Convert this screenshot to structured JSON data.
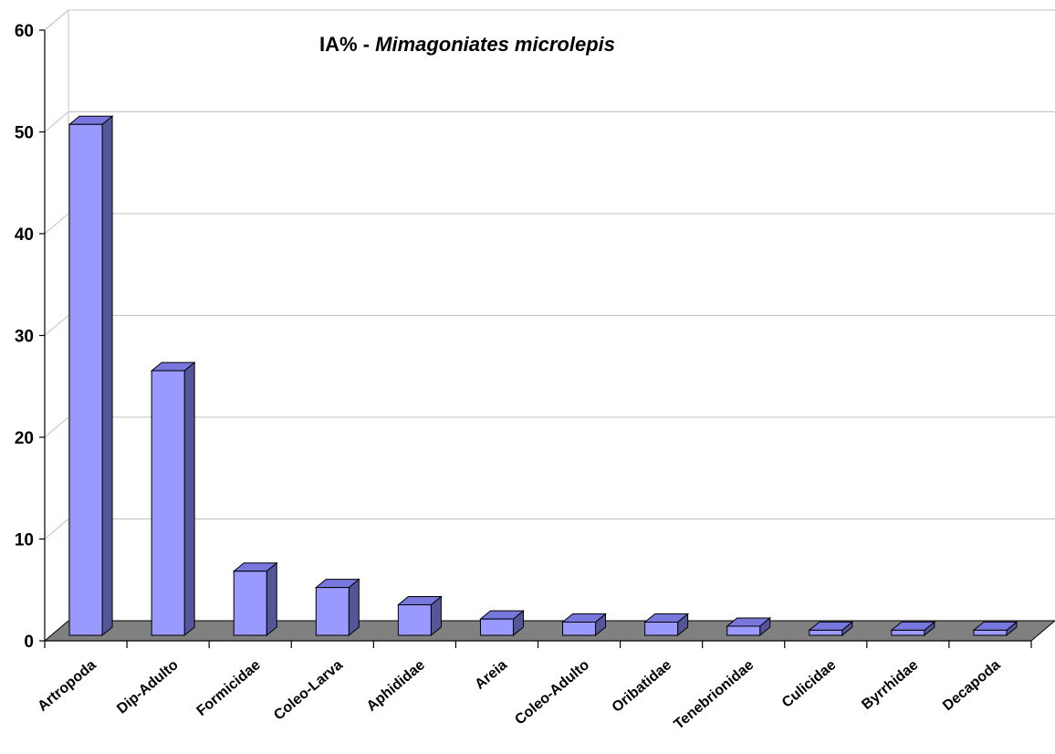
{
  "chart_data": {
    "type": "bar",
    "title": "IA% - ",
    "title_italic": "Mimagoniates microlepis",
    "xlabel": "",
    "ylabel": "",
    "ylim": [
      0,
      60
    ],
    "yticks": [
      "0",
      "10",
      "20",
      "30",
      "40",
      "50",
      "60"
    ],
    "grid": true,
    "legend": "none",
    "style": "3d-column",
    "colors": {
      "bar_front": "#9999ff",
      "bar_top": "#7777dd",
      "bar_side": "#55559a",
      "floor": "#808080",
      "grid": "#c0c0c0",
      "axis": "#000000"
    },
    "categories": [
      "Artropoda",
      "Dip-Adulto",
      "Formicidae",
      "Coleo-Larva",
      "Aphididae",
      "Areia",
      "Coleo-Adulto",
      "Oribatidae",
      "Tenebrionidae",
      "Culicidae",
      "Byrrhidae",
      "Decapoda"
    ],
    "values": [
      50.2,
      26.0,
      6.3,
      4.7,
      3.0,
      1.6,
      1.3,
      1.3,
      0.9,
      0.5,
      0.5,
      0.5
    ]
  }
}
